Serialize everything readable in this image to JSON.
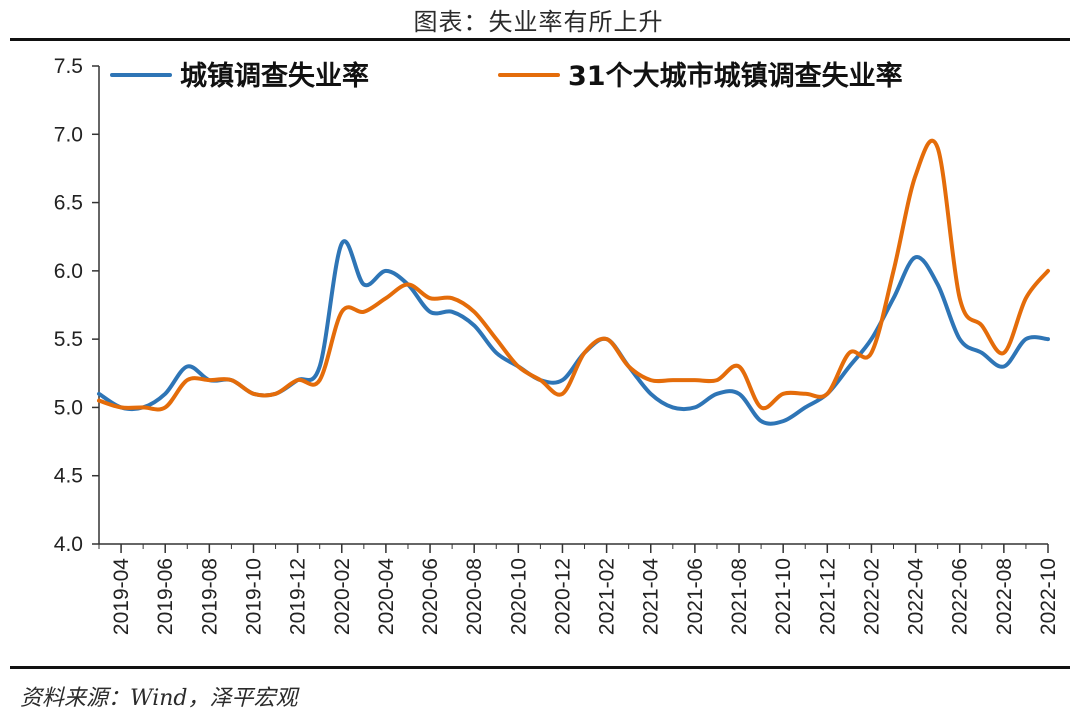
{
  "title": "图表：失业率有所上升",
  "source": "资料来源：Wind，泽平宏观",
  "chart_data": {
    "type": "line",
    "ylim": [
      4.0,
      7.5
    ],
    "yticks": [
      "4.0",
      "4.5",
      "5.0",
      "5.5",
      "6.0",
      "6.5",
      "7.0",
      "7.5"
    ],
    "xtick_labels": [
      "2019-04",
      "2019-06",
      "2019-08",
      "2019-10",
      "2019-12",
      "2020-02",
      "2020-04",
      "2020-06",
      "2020-08",
      "2020-10",
      "2020-12",
      "2021-02",
      "2021-04",
      "2021-06",
      "2021-08",
      "2021-10",
      "2021-12",
      "2022-02",
      "2022-04",
      "2022-06",
      "2022-08",
      "2022-10"
    ],
    "x": [
      "2019-03",
      "2019-04",
      "2019-05",
      "2019-06",
      "2019-07",
      "2019-08",
      "2019-09",
      "2019-10",
      "2019-11",
      "2019-12",
      "2020-01",
      "2020-02",
      "2020-03",
      "2020-04",
      "2020-05",
      "2020-06",
      "2020-07",
      "2020-08",
      "2020-09",
      "2020-10",
      "2020-11",
      "2020-12",
      "2021-01",
      "2021-02",
      "2021-03",
      "2021-04",
      "2021-05",
      "2021-06",
      "2021-07",
      "2021-08",
      "2021-09",
      "2021-10",
      "2021-11",
      "2021-12",
      "2022-01",
      "2022-02",
      "2022-03",
      "2022-04",
      "2022-05",
      "2022-06",
      "2022-07",
      "2022-08",
      "2022-09",
      "2022-10"
    ],
    "legend_position": "top",
    "series": [
      {
        "name": "城镇调查失业率",
        "color": "#2e75b6",
        "values": [
          5.1,
          5.0,
          5.0,
          5.1,
          5.3,
          5.2,
          5.2,
          5.1,
          5.1,
          5.2,
          5.3,
          6.2,
          5.9,
          6.0,
          5.9,
          5.7,
          5.7,
          5.6,
          5.4,
          5.3,
          5.2,
          5.2,
          5.4,
          5.5,
          5.3,
          5.1,
          5.0,
          5.0,
          5.1,
          5.1,
          4.9,
          4.9,
          5.0,
          5.1,
          5.3,
          5.5,
          5.8,
          6.1,
          5.9,
          5.5,
          5.4,
          5.3,
          5.5,
          5.5
        ]
      },
      {
        "name": "31个大城市城镇调查失业率",
        "color": "#e46c0a",
        "values": [
          5.05,
          5.0,
          5.0,
          5.0,
          5.2,
          5.2,
          5.2,
          5.1,
          5.1,
          5.2,
          5.2,
          5.7,
          5.7,
          5.8,
          5.9,
          5.8,
          5.8,
          5.7,
          5.5,
          5.3,
          5.2,
          5.1,
          5.4,
          5.5,
          5.3,
          5.2,
          5.2,
          5.2,
          5.2,
          5.3,
          5.0,
          5.1,
          5.1,
          5.1,
          5.4,
          5.4,
          6.0,
          6.7,
          6.9,
          5.8,
          5.6,
          5.4,
          5.8,
          6.0
        ]
      }
    ]
  }
}
